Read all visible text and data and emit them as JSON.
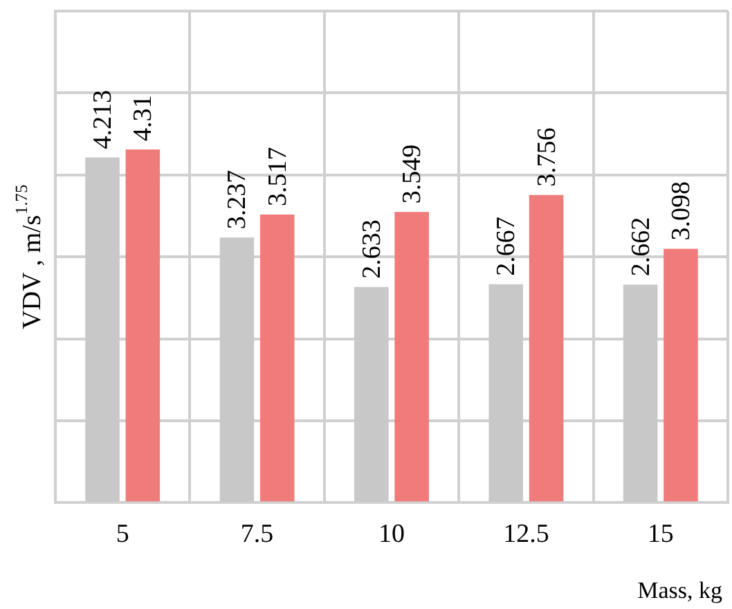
{
  "chart_data": {
    "type": "bar",
    "ylabel": "VDV , m/s$^{1.75}$",
    "xlabel": "Mass, kg",
    "categories": [
      "5",
      "7.5",
      "10",
      "12.5",
      "15"
    ],
    "series": [
      {
        "color": "#c8c8c8",
        "values": [
          4.213,
          3.237,
          2.633,
          2.667,
          2.662
        ]
      },
      {
        "color": "#f07b7b",
        "values": [
          4.31,
          3.517,
          3.549,
          3.756,
          3.098
        ]
      }
    ],
    "ylim": [
      0,
      6
    ],
    "yticks": [
      {
        "value": 0,
        "label": null
      },
      {
        "value": 1,
        "label": null
      },
      {
        "value": 2,
        "label": null
      },
      {
        "value": 3,
        "label": null
      },
      {
        "value": 4,
        "label": null
      },
      {
        "value": 5,
        "label": null
      },
      {
        "value": 6,
        "label": null
      }
    ],
    "grid": true,
    "data_labels": true,
    "legend": false
  }
}
